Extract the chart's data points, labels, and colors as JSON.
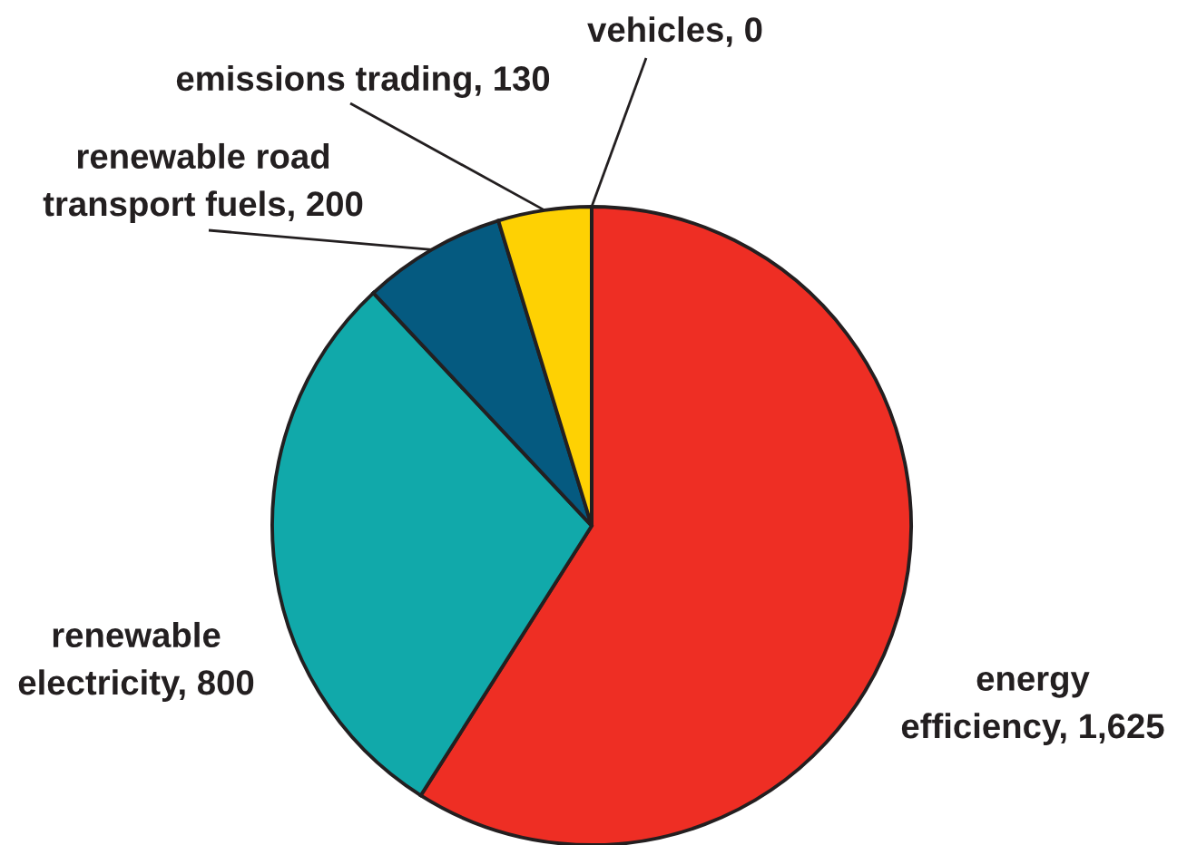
{
  "chart_data": {
    "type": "pie",
    "categories": [
      "energy efficiency, 1,625",
      "renewable electricity, 800",
      "renewable road transport fuels, 200",
      "emissions trading, 130",
      "vehicles, 0"
    ],
    "values": [
      1625,
      800,
      200,
      130,
      0
    ],
    "colors": [
      "#ee2e24",
      "#11a9aa",
      "#055a80",
      "#fed103",
      null
    ]
  }
}
